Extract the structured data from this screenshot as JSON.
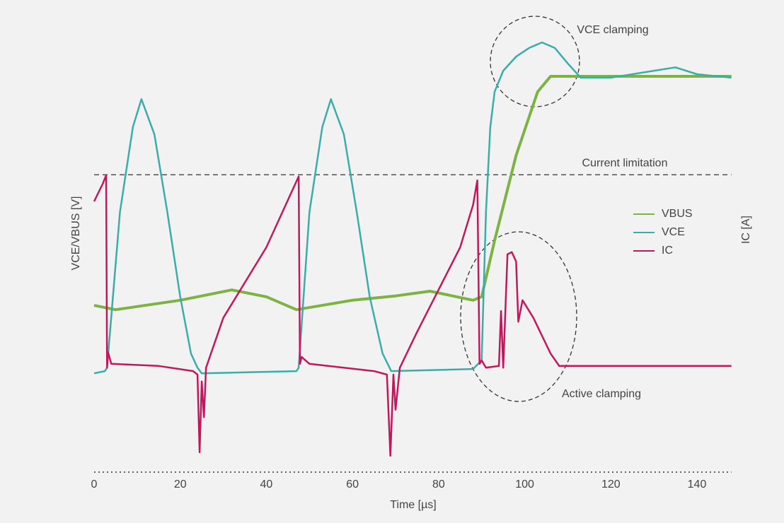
{
  "chart_data": {
    "type": "line",
    "xlabel": "Time [µs]",
    "ylabel": "VCE/VBUS [V]",
    "y2label": "IC [A]",
    "xlim": [
      0,
      148
    ],
    "xticks": [
      0,
      20,
      40,
      60,
      80,
      100,
      120,
      140
    ],
    "ylim": [
      0,
      100
    ],
    "legend": "right",
    "series": [
      {
        "name": "VBUS",
        "color": "#7cb342",
        "x": [
          0,
          5,
          20,
          32,
          40,
          47,
          60,
          70,
          78,
          88,
          90,
          93,
          98,
          103,
          106,
          110,
          148
        ],
        "values": [
          38.8,
          37.8,
          40.0,
          42.4,
          40.8,
          37.8,
          40.0,
          41.0,
          42.1,
          40.0,
          40.8,
          53.9,
          73.7,
          88.5,
          92.1,
          92.1,
          92.1
        ]
      },
      {
        "name": "VCE",
        "color": "#3aada8",
        "x": [
          0,
          2.5,
          3,
          6,
          9,
          11,
          14,
          17,
          20,
          22.5,
          24,
          25,
          47,
          47.5,
          50,
          53,
          55,
          58,
          61,
          64,
          67,
          69,
          88,
          90,
          91,
          92,
          93,
          95,
          98,
          101,
          104,
          107,
          110,
          113,
          120,
          130,
          135,
          140,
          148
        ],
        "values": [
          23.0,
          23.5,
          24.3,
          60.5,
          80.3,
          86.8,
          78.6,
          60.5,
          40.8,
          27.6,
          24.3,
          23.0,
          23.5,
          24.3,
          60.5,
          80.3,
          86.8,
          78.6,
          60.5,
          40.8,
          27.6,
          23.5,
          24.0,
          26.0,
          60.5,
          80.3,
          88.5,
          93.4,
          96.7,
          98.7,
          100,
          98.7,
          95.1,
          91.8,
          91.8,
          93.4,
          94.2,
          92.6,
          91.8
        ]
      },
      {
        "name": "IC",
        "color": "#c2185b",
        "x": [
          0,
          2,
          2.8,
          3,
          3.2,
          4,
          15,
          23,
          24,
          24.5,
          25,
          25.5,
          26,
          30,
          40,
          47.5,
          47.8,
          48.2,
          50,
          65,
          68,
          68.8,
          69.5,
          70,
          71,
          75,
          85,
          88,
          89,
          89.5,
          90,
          91,
          94,
          94.5,
          95,
          96,
          97,
          98,
          98.5,
          99.5,
          102,
          106,
          108,
          148
        ],
        "values": [
          63.0,
          67.1,
          69.1,
          24.3,
          28.0,
          25.2,
          24.7,
          23.5,
          22.7,
          4.6,
          21.1,
          12.8,
          24.3,
          35.9,
          52.3,
          68.8,
          25.2,
          26.8,
          25.2,
          23.5,
          22.7,
          3.8,
          22.7,
          14.5,
          24.3,
          32.6,
          52.3,
          62.2,
          67.9,
          25.2,
          26.0,
          24.3,
          24.7,
          37.5,
          24.3,
          50.7,
          51.2,
          49.0,
          35.0,
          40.0,
          35.9,
          27.6,
          24.7,
          24.7
        ]
      }
    ],
    "annotations": [
      {
        "text": "Current limitation",
        "y": 69.2
      },
      {
        "text": "VCE clamping"
      },
      {
        "text": "Active clamping"
      }
    ]
  }
}
